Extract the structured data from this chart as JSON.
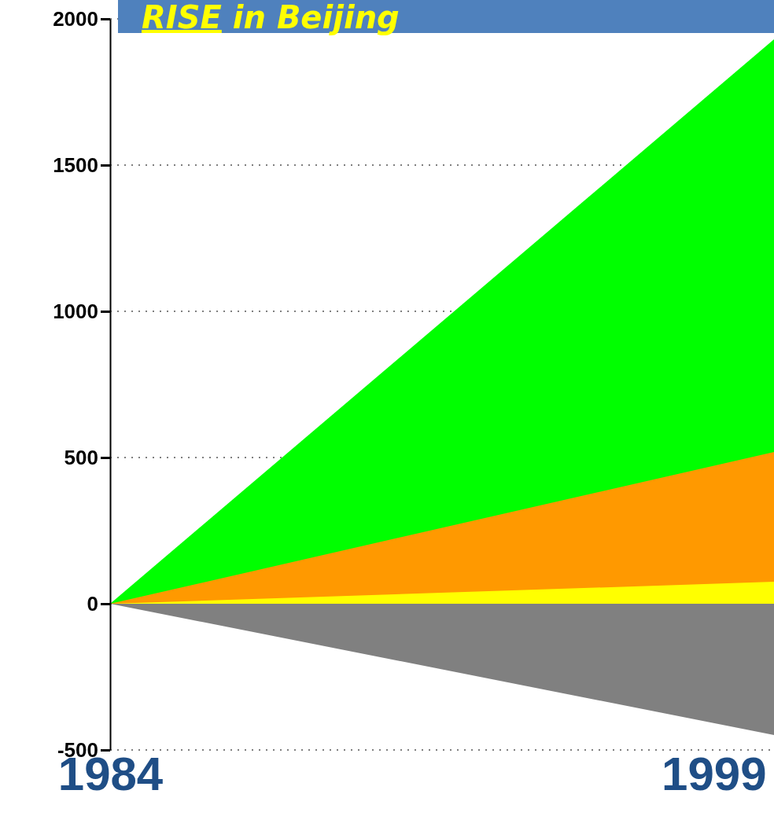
{
  "chart_data": {
    "type": "area",
    "title": "RISE in Beijing",
    "x": [
      1984,
      2000.5
    ],
    "series": [
      {
        "color": "#00ff00",
        "values": [
          0,
          1930
        ]
      },
      {
        "color": "#ff9900",
        "values": [
          0,
          519
        ]
      },
      {
        "color": "#ffff00",
        "values": [
          0,
          75
        ]
      },
      {
        "color": "#808080",
        "values": [
          0,
          -449
        ]
      }
    ],
    "xlim": [
      1984,
      2000.5
    ],
    "xticks": [
      1984,
      1999
    ],
    "ylim": [
      -500,
      2000
    ],
    "yticks": [
      -500,
      0,
      500,
      1000,
      1500,
      2000
    ],
    "grid": "y"
  }
}
